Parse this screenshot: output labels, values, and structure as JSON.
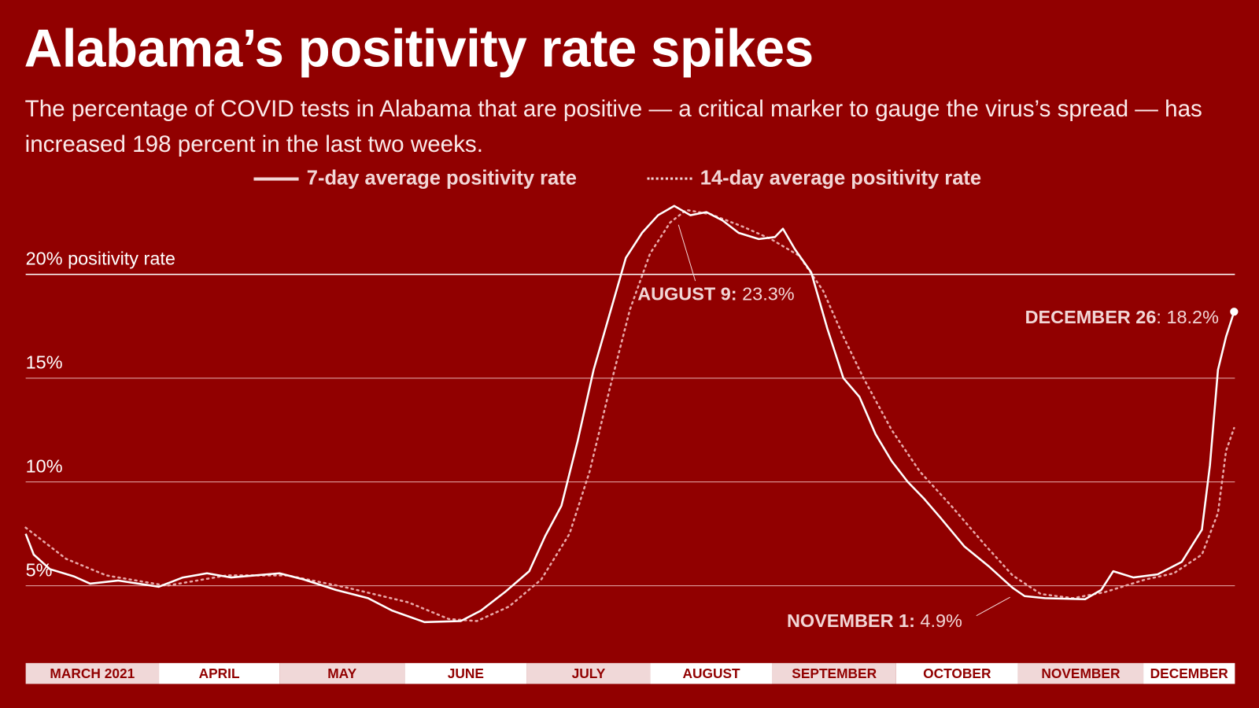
{
  "title": "Alabama’s positivity rate spikes",
  "subtitle": "The percentage of COVID tests in Alabama that are positive — a critical marker to gauge the virus’s spread — has increased 198 percent in the last two weeks.",
  "colors": {
    "background": "#910000",
    "line": "#ffffff",
    "legend_text": "#f2d6d6",
    "month_band_light": "#f0d8d8",
    "month_band_white": "#ffffff"
  },
  "chart_data": {
    "type": "line",
    "x_start": "2021-03-01",
    "x_end": "2021-12-26",
    "ylim": [
      0,
      24
    ],
    "grid": true,
    "legend_placement": "top",
    "y_ticks": [
      {
        "value": 20,
        "label": "20% positivity rate"
      },
      {
        "value": 15,
        "label": "15%"
      },
      {
        "value": 10,
        "label": "10%"
      },
      {
        "value": 5,
        "label": "5%"
      }
    ],
    "x_ticks": [
      "MARCH 2021",
      "APRIL",
      "MAY",
      "JUNE",
      "JULY",
      "AUGUST",
      "SEPTEMBER",
      "OCTOBER",
      "NOVEMBER",
      "DECEMBER"
    ],
    "series": [
      {
        "name": "7-day average positivity rate",
        "style": "solid",
        "x": [
          "2021-03-01",
          "2021-03-03",
          "2021-03-07",
          "2021-03-13",
          "2021-03-17",
          "2021-03-24",
          "2021-04-03",
          "2021-04-09",
          "2021-04-15",
          "2021-04-21",
          "2021-05-03",
          "2021-05-09",
          "2021-05-17",
          "2021-05-25",
          "2021-05-31",
          "2021-06-08",
          "2021-06-17",
          "2021-06-22",
          "2021-06-28",
          "2021-07-04",
          "2021-07-08",
          "2021-07-12",
          "2021-07-16",
          "2021-07-20",
          "2021-07-24",
          "2021-07-28",
          "2021-08-01",
          "2021-08-05",
          "2021-08-09",
          "2021-08-13",
          "2021-08-17",
          "2021-08-21",
          "2021-08-25",
          "2021-08-30",
          "2021-09-03",
          "2021-09-05",
          "2021-09-08",
          "2021-09-12",
          "2021-09-16",
          "2021-09-20",
          "2021-09-24",
          "2021-09-28",
          "2021-10-02",
          "2021-10-06",
          "2021-10-10",
          "2021-10-14",
          "2021-10-20",
          "2021-10-26",
          "2021-11-01",
          "2021-11-04",
          "2021-11-09",
          "2021-11-19",
          "2021-11-23",
          "2021-11-26",
          "2021-12-01",
          "2021-12-07",
          "2021-12-13",
          "2021-12-18",
          "2021-12-20",
          "2021-12-22",
          "2021-12-24",
          "2021-12-26"
        ],
        "y": [
          7.5,
          6.5,
          5.8,
          5.45,
          5.1,
          5.25,
          4.95,
          5.4,
          5.6,
          5.4,
          5.6,
          5.3,
          4.8,
          4.4,
          3.8,
          3.25,
          3.3,
          3.8,
          4.7,
          5.7,
          7.4,
          8.85,
          11.95,
          15.4,
          18.1,
          20.8,
          22.0,
          22.85,
          23.3,
          22.85,
          23.0,
          22.6,
          22.0,
          21.7,
          21.8,
          22.2,
          21.2,
          20.1,
          17.4,
          15.0,
          14.1,
          12.3,
          11.0,
          10.0,
          9.2,
          8.3,
          6.9,
          5.95,
          4.9,
          4.5,
          4.4,
          4.35,
          4.8,
          5.7,
          5.4,
          5.55,
          6.15,
          7.7,
          10.8,
          15.4,
          17.0,
          18.2
        ]
      },
      {
        "name": "14-day average positivity rate",
        "style": "dotted",
        "x": [
          "2021-03-01",
          "2021-03-11",
          "2021-03-21",
          "2021-04-05",
          "2021-04-20",
          "2021-05-05",
          "2021-05-20",
          "2021-06-04",
          "2021-06-14",
          "2021-06-21",
          "2021-06-29",
          "2021-07-07",
          "2021-07-14",
          "2021-07-19",
          "2021-07-24",
          "2021-07-29",
          "2021-08-03",
          "2021-08-08",
          "2021-08-12",
          "2021-08-18",
          "2021-08-26",
          "2021-09-02",
          "2021-09-09",
          "2021-09-15",
          "2021-09-20",
          "2021-09-25",
          "2021-10-02",
          "2021-10-09",
          "2021-10-17",
          "2021-10-25",
          "2021-11-01",
          "2021-11-08",
          "2021-11-16",
          "2021-11-24",
          "2021-12-04",
          "2021-12-11",
          "2021-12-18",
          "2021-12-22",
          "2021-12-24",
          "2021-12-26"
        ],
        "y": [
          7.8,
          6.3,
          5.5,
          5.0,
          5.5,
          5.5,
          4.9,
          4.2,
          3.4,
          3.3,
          4.0,
          5.3,
          7.5,
          10.5,
          14.5,
          18.3,
          21.0,
          22.5,
          23.1,
          22.9,
          22.3,
          21.7,
          20.9,
          19.2,
          17.0,
          15.0,
          12.5,
          10.5,
          8.8,
          7.0,
          5.5,
          4.6,
          4.4,
          4.7,
          5.3,
          5.6,
          6.5,
          8.5,
          11.5,
          12.6
        ]
      }
    ],
    "annotations": [
      {
        "date": "2021-08-09",
        "label": "AUGUST 9:",
        "value": "23.3%"
      },
      {
        "date": "2021-12-26",
        "label": "DECEMBER 26",
        "value": ": 18.2%"
      },
      {
        "date": "2021-11-01",
        "label": "NOVEMBER 1:",
        "value": "4.9%"
      }
    ]
  }
}
